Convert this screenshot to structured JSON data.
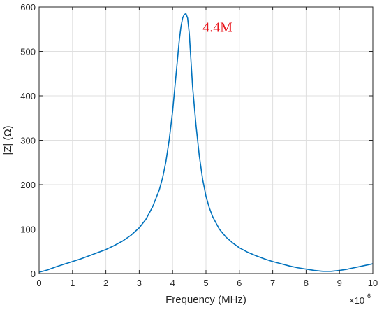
{
  "chart_data": {
    "type": "line",
    "xlabel": "Frequency (MHz)",
    "ylabel": "|Z| (Ω)",
    "x_multiplier_base": "×10",
    "x_multiplier_exp": "6",
    "xlim": [
      0,
      10
    ],
    "ylim": [
      0,
      600
    ],
    "xticks": [
      0,
      1,
      2,
      3,
      4,
      5,
      6,
      7,
      8,
      9,
      10
    ],
    "yticks": [
      0,
      100,
      200,
      300,
      400,
      500,
      600
    ],
    "grid": true,
    "annotation": {
      "text": "4.4M",
      "x": 4.9,
      "y": 555
    },
    "series": [
      {
        "color": "#0072bd",
        "x": [
          0,
          0.25,
          0.5,
          0.75,
          1.0,
          1.25,
          1.5,
          1.75,
          2.0,
          2.25,
          2.5,
          2.75,
          3.0,
          3.2,
          3.4,
          3.6,
          3.7,
          3.8,
          3.9,
          4.0,
          4.1,
          4.2,
          4.25,
          4.3,
          4.35,
          4.4,
          4.45,
          4.5,
          4.55,
          4.6,
          4.7,
          4.8,
          4.9,
          5.0,
          5.1,
          5.2,
          5.4,
          5.6,
          5.8,
          6.0,
          6.25,
          6.5,
          6.75,
          7.0,
          7.25,
          7.5,
          7.75,
          8.0,
          8.25,
          8.5,
          8.75,
          9.0,
          9.25,
          9.5,
          9.75,
          10.0
        ],
        "y": [
          3,
          8,
          15,
          21,
          27,
          33,
          40,
          47,
          54,
          63,
          73,
          86,
          103,
          122,
          150,
          188,
          215,
          252,
          302,
          365,
          445,
          525,
          555,
          575,
          583,
          585,
          575,
          540,
          480,
          420,
          335,
          265,
          212,
          174,
          148,
          128,
          100,
          82,
          69,
          58,
          48,
          40,
          33,
          27,
          22,
          17,
          13,
          10,
          7,
          5,
          5,
          7,
          10,
          14,
          18,
          22
        ]
      }
    ]
  }
}
